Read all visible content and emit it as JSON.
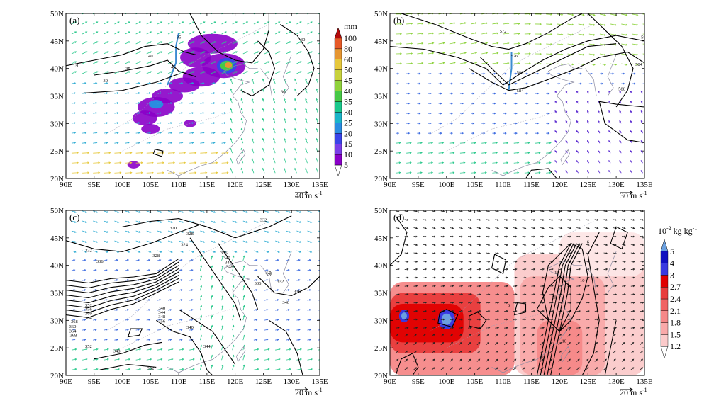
{
  "figure": {
    "lon_ticks": [
      "90E",
      "95E",
      "100E",
      "105E",
      "110E",
      "115E",
      "120E",
      "125E",
      "130E",
      "135E"
    ],
    "lat_ticks": [
      "20N",
      "25N",
      "30N",
      "35N",
      "40N",
      "45N",
      "50N"
    ],
    "lon_range": [
      90,
      135
    ],
    "lat_range": [
      20,
      50
    ]
  },
  "chart_data": [
    {
      "panel": "(a)",
      "type": "heatmap",
      "overlays": [
        "wind vectors",
        "contour"
      ],
      "contour_labels": [
        "30",
        "35",
        "40",
        "45",
        "30",
        "35",
        "30",
        "30"
      ],
      "reference_vector": {
        "value": "40",
        "unit": "m s"
      },
      "precip_colorbar": {
        "unit": "mm",
        "levels": [
          "5",
          "10",
          "15",
          "20",
          "25",
          "30",
          "35",
          "40",
          "45",
          "50",
          "60",
          "80",
          "100"
        ],
        "colors": [
          "#8a00c8",
          "#7a3ee8",
          "#3a44e8",
          "#2a8ce0",
          "#1ab4c8",
          "#1ac88c",
          "#46c846",
          "#90d23c",
          "#c8d23c",
          "#e6c83c",
          "#e69632",
          "#e65a28",
          "#d21e1e"
        ]
      }
    },
    {
      "panel": "(b)",
      "type": "contour",
      "overlays": [
        "wind vectors",
        "contour"
      ],
      "contour_labels": [
        "572",
        "576",
        "580",
        "584",
        "584",
        "584",
        "588"
      ],
      "reference_vector": {
        "value": "30",
        "unit": "m s"
      }
    },
    {
      "panel": "(c)",
      "type": "contour",
      "overlays": [
        "wind vectors",
        "contour"
      ],
      "contour_labels": [
        "332",
        "336",
        "328",
        "324",
        "320",
        "328",
        "336",
        "340",
        "344",
        "348",
        "332",
        "328",
        "328",
        "336",
        "340",
        "352",
        "356",
        "360",
        "364",
        "368",
        "340",
        "344",
        "348",
        "356",
        "360",
        "364",
        "368",
        "352",
        "348",
        "340",
        "344",
        "352",
        "332",
        "336"
      ],
      "reference_vector": {
        "value": "20",
        "unit": "m s"
      }
    },
    {
      "panel": "(d)",
      "type": "heatmap",
      "overlays": [
        "wind vectors",
        "contour"
      ],
      "contour_labels": [
        "6",
        "10",
        "10",
        "10",
        "10",
        "12",
        "10",
        "6"
      ],
      "reference_vector": {
        "value": "20",
        "unit": "m s"
      },
      "q_colorbar": {
        "unit_prefix": "10",
        "unit_exp": "-2",
        "unit_rest": "kg kg",
        "levels": [
          "1.2",
          "1.5",
          "1.8",
          "2.1",
          "2.4",
          "2.7",
          "3",
          "4",
          "5"
        ],
        "colors": [
          "#fde6e6",
          "#fbcaca",
          "#f9a9a9",
          "#f58888",
          "#f06464",
          "#e83c3c",
          "#e00000",
          "#3a3ae0",
          "#1010c0",
          "#6aa0e0"
        ]
      }
    }
  ]
}
